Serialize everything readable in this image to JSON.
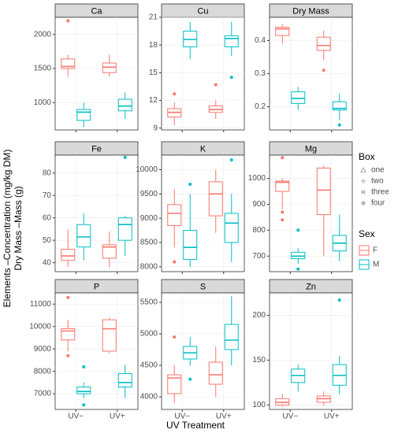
{
  "chart_data": {
    "type": "box",
    "x_label": "UV Treatment",
    "y_labels": [
      "Elements –Concentration (mg/kg DM)",
      "Dry Mass –Mass (g)"
    ],
    "categories": [
      "UV−",
      "UV+"
    ],
    "series": [
      {
        "name": "F",
        "color": "#f8766d"
      },
      {
        "name": "M",
        "color": "#00bfc4"
      }
    ],
    "legend": {
      "box_title": "Box",
      "box_items": [
        "one",
        "two",
        "three",
        "four"
      ],
      "sex_title": "Sex"
    },
    "panels": [
      {
        "title": "Ca",
        "ylim": [
          600,
          2250
        ],
        "yticks": [
          1000,
          1500,
          2000
        ],
        "series": [
          [
            {
              "low": 1380,
              "q1": 1500,
              "median": 1530,
              "q3": 1640,
              "high": 1700,
              "outliers": [
                2200
              ]
            },
            {
              "low": 1380,
              "q1": 1440,
              "median": 1520,
              "q3": 1580,
              "high": 1700,
              "outliers": []
            }
          ],
          [
            {
              "low": 640,
              "q1": 740,
              "median": 860,
              "q3": 900,
              "high": 1000,
              "outliers": []
            },
            {
              "low": 760,
              "q1": 880,
              "median": 950,
              "q3": 1050,
              "high": 1150,
              "outliers": []
            }
          ]
        ]
      },
      {
        "title": "Cu",
        "ylim": [
          8.8,
          21
        ],
        "yticks": [
          9,
          12,
          15,
          18,
          21
        ],
        "series": [
          [
            {
              "low": 9.3,
              "q1": 10.2,
              "median": 10.7,
              "q3": 11.1,
              "high": 11.8,
              "outliers": [
                12.7
              ]
            },
            {
              "low": 10,
              "q1": 10.7,
              "median": 11,
              "q3": 11.4,
              "high": 12,
              "outliers": [
                13.7
              ]
            }
          ],
          [
            {
              "low": 16.5,
              "q1": 17.8,
              "median": 18.6,
              "q3": 19.5,
              "high": 20.5,
              "outliers": []
            },
            {
              "low": 16.8,
              "q1": 17.8,
              "median": 18.7,
              "q3": 19,
              "high": 20.5,
              "outliers": [
                14.5
              ]
            }
          ]
        ]
      },
      {
        "title": "Dry Mass",
        "ylim": [
          0.13,
          0.47
        ],
        "yticks": [
          0.2,
          0.3,
          0.4
        ],
        "series": [
          [
            {
              "low": 0.39,
              "q1": 0.415,
              "median": 0.435,
              "q3": 0.44,
              "high": 0.45,
              "outliers": []
            },
            {
              "low": 0.34,
              "q1": 0.37,
              "median": 0.385,
              "q3": 0.41,
              "high": 0.43,
              "outliers": [
                0.31
              ]
            }
          ],
          [
            {
              "low": 0.19,
              "q1": 0.21,
              "median": 0.225,
              "q3": 0.245,
              "high": 0.26,
              "outliers": []
            },
            {
              "low": 0.16,
              "q1": 0.19,
              "median": 0.195,
              "q3": 0.215,
              "high": 0.24,
              "outliers": [
                0.145
              ]
            }
          ]
        ]
      },
      {
        "title": "Fe",
        "ylim": [
          36,
          88
        ],
        "yticks": [
          40,
          50,
          60,
          70,
          80
        ],
        "series": [
          [
            {
              "low": 38,
              "q1": 41,
              "median": 43,
              "q3": 46,
              "high": 55,
              "outliers": []
            },
            {
              "low": 38,
              "q1": 42,
              "median": 47,
              "q3": 48,
              "high": 54,
              "outliers": []
            }
          ],
          [
            {
              "low": 41,
              "q1": 47,
              "median": 51.5,
              "q3": 57,
              "high": 62,
              "outliers": []
            },
            {
              "low": 43,
              "q1": 50,
              "median": 57,
              "q3": 60,
              "high": 61,
              "outliers": [
                87
              ]
            }
          ]
        ]
      },
      {
        "title": "K",
        "ylim": [
          7900,
          10300
        ],
        "yticks": [
          8000,
          8500,
          9000,
          9500,
          10000
        ],
        "series": [
          [
            {
              "low": 8400,
              "q1": 8850,
              "median": 9100,
              "q3": 9280,
              "high": 9600,
              "outliers": [
                8100
              ]
            },
            {
              "low": 8700,
              "q1": 9050,
              "median": 9500,
              "q3": 9750,
              "high": 10000,
              "outliers": []
            }
          ],
          [
            {
              "low": 8000,
              "q1": 8150,
              "median": 8400,
              "q3": 8750,
              "high": 9500,
              "outliers": [
                9700
              ]
            },
            {
              "low": 8100,
              "q1": 8500,
              "median": 8900,
              "q3": 9100,
              "high": 9500,
              "outliers": [
                10200
              ]
            }
          ]
        ]
      },
      {
        "title": "Mg",
        "ylim": [
          640,
          1090
        ],
        "yticks": [
          700,
          800,
          900,
          1000
        ],
        "series": [
          [
            {
              "low": 880,
              "q1": 950,
              "median": 985,
              "q3": 990,
              "high": 1000,
              "outliers": [
                1080,
                870,
                840
              ]
            },
            {
              "low": 700,
              "q1": 860,
              "median": 955,
              "q3": 1040,
              "high": 1050,
              "outliers": []
            }
          ],
          [
            {
              "low": 670,
              "q1": 690,
              "median": 700,
              "q3": 715,
              "high": 730,
              "outliers": [
                800,
                650
              ]
            },
            {
              "low": 680,
              "q1": 720,
              "median": 750,
              "q3": 780,
              "high": 860,
              "outliers": []
            }
          ]
        ]
      },
      {
        "title": "P",
        "ylim": [
          6300,
          11500
        ],
        "yticks": [
          7000,
          8000,
          9000,
          10000,
          11000
        ],
        "series": [
          [
            {
              "low": 8900,
              "q1": 9400,
              "median": 9800,
              "q3": 9900,
              "high": 10300,
              "outliers": [
                11300,
                8700
              ]
            },
            {
              "low": 8800,
              "q1": 8900,
              "median": 9900,
              "q3": 10300,
              "high": 10400,
              "outliers": []
            }
          ],
          [
            {
              "low": 6800,
              "q1": 7000,
              "median": 7100,
              "q3": 7300,
              "high": 7500,
              "outliers": [
                8200,
                6500
              ]
            },
            {
              "low": 6800,
              "q1": 7300,
              "median": 7500,
              "q3": 7900,
              "high": 8300,
              "outliers": []
            }
          ]
        ]
      },
      {
        "title": "S",
        "ylim": [
          3800,
          5650
        ],
        "yticks": [
          4000,
          4500,
          5000,
          5500
        ],
        "series": [
          [
            {
              "low": 3900,
              "q1": 4050,
              "median": 4300,
              "q3": 4350,
              "high": 4500,
              "outliers": [
                4950
              ]
            },
            {
              "low": 4000,
              "q1": 4200,
              "median": 4350,
              "q3": 4550,
              "high": 4800,
              "outliers": []
            }
          ],
          [
            {
              "low": 4500,
              "q1": 4600,
              "median": 4700,
              "q3": 4800,
              "high": 4950,
              "outliers": [
                4280
              ]
            },
            {
              "low": 4500,
              "q1": 4750,
              "median": 4900,
              "q3": 5150,
              "high": 5600,
              "outliers": []
            }
          ]
        ]
      },
      {
        "title": "Zn",
        "ylim": [
          95,
          225
        ],
        "yticks": [
          100,
          150,
          200
        ],
        "series": [
          [
            {
              "low": 98,
              "q1": 100,
              "median": 103,
              "q3": 107,
              "high": 112,
              "outliers": []
            },
            {
              "low": 99,
              "q1": 103,
              "median": 107,
              "q3": 110,
              "high": 115,
              "outliers": []
            }
          ],
          [
            {
              "low": 115,
              "q1": 125,
              "median": 133,
              "q3": 140,
              "high": 145,
              "outliers": []
            },
            {
              "low": 112,
              "q1": 122,
              "median": 133,
              "q3": 145,
              "high": 155,
              "outliers": [
                217
              ]
            }
          ]
        ]
      }
    ]
  }
}
